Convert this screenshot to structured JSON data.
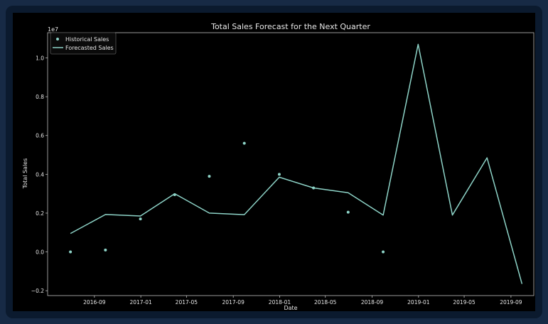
{
  "chart_data": {
    "type": "line",
    "title": "Total Sales Forecast for the Next Quarter",
    "xlabel": "Date",
    "ylabel": "Total Sales",
    "y_multiplier_label": "1e7",
    "x_ticks": [
      "2016-09",
      "2017-01",
      "2017-05",
      "2017-09",
      "2018-01",
      "2018-05",
      "2018-09",
      "2019-01",
      "2019-05",
      "2019-09"
    ],
    "y_ticks": [
      "−0.2",
      "0.0",
      "0.2",
      "0.4",
      "0.6",
      "0.8",
      "1.0"
    ],
    "ylim": [
      -0.225,
      1.13
    ],
    "xlim": [
      "2016-05-01",
      "2019-10-31"
    ],
    "legend_position": "top-left",
    "series": [
      {
        "name": "Historical Sales",
        "kind": "scatter",
        "color": "#8dd3c7",
        "points": [
          {
            "x": "2016-06-30",
            "y": 0.0
          },
          {
            "x": "2016-09-30",
            "y": 0.01
          },
          {
            "x": "2016-12-31",
            "y": 0.17
          },
          {
            "x": "2017-03-31",
            "y": 0.295
          },
          {
            "x": "2017-06-30",
            "y": 0.39
          },
          {
            "x": "2017-09-30",
            "y": 0.56
          },
          {
            "x": "2017-12-31",
            "y": 0.4
          },
          {
            "x": "2018-03-31",
            "y": 0.33
          },
          {
            "x": "2018-06-30",
            "y": 0.205
          },
          {
            "x": "2018-09-30",
            "y": 0.0
          }
        ]
      },
      {
        "name": "Forecasted Sales",
        "kind": "line",
        "color": "#8dd3c7",
        "points": [
          {
            "x": "2016-06-30",
            "y": 0.095
          },
          {
            "x": "2016-09-30",
            "y": 0.193
          },
          {
            "x": "2016-12-31",
            "y": 0.185
          },
          {
            "x": "2017-03-31",
            "y": 0.3
          },
          {
            "x": "2017-06-30",
            "y": 0.2
          },
          {
            "x": "2017-09-30",
            "y": 0.192
          },
          {
            "x": "2017-12-31",
            "y": 0.385
          },
          {
            "x": "2018-03-31",
            "y": 0.33
          },
          {
            "x": "2018-06-30",
            "y": 0.305
          },
          {
            "x": "2018-09-30",
            "y": 0.19
          },
          {
            "x": "2018-12-31",
            "y": 1.07
          },
          {
            "x": "2019-03-31",
            "y": 0.19
          },
          {
            "x": "2019-06-30",
            "y": 0.485
          },
          {
            "x": "2019-09-30",
            "y": -0.165
          }
        ]
      }
    ]
  }
}
